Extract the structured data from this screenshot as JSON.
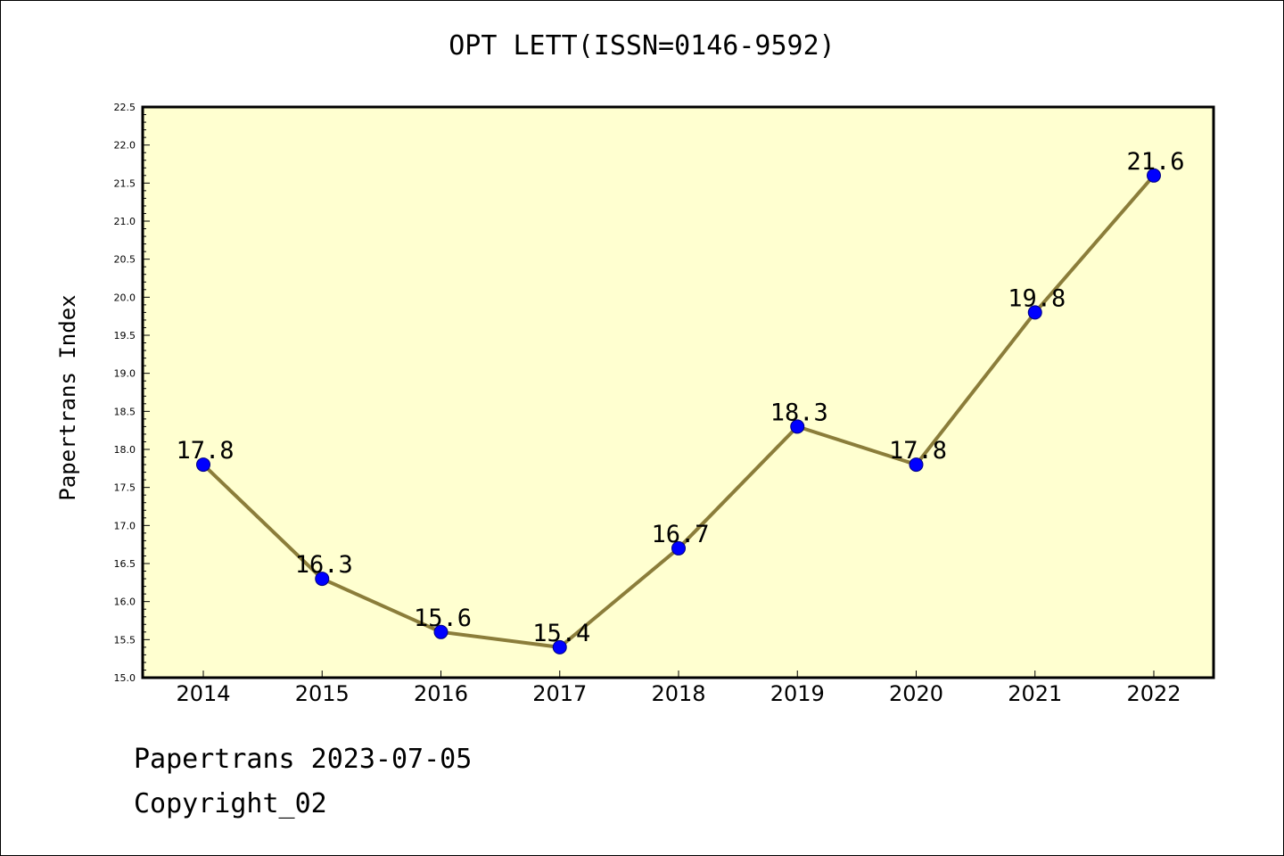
{
  "chart_data": {
    "type": "line",
    "title": "OPT LETT(ISSN=0146-9592)",
    "ylabel": "Papertrans Index",
    "xlabel": "",
    "categories": [
      "2014",
      "2015",
      "2016",
      "2017",
      "2018",
      "2019",
      "2020",
      "2021",
      "2022"
    ],
    "values": [
      17.8,
      16.3,
      15.6,
      15.4,
      16.7,
      18.3,
      17.8,
      19.8,
      21.6
    ],
    "data_labels": [
      "17.8",
      "16.3",
      "15.6",
      "15.4",
      "16.7",
      "18.3",
      "17.8",
      "19.8",
      "21.6"
    ],
    "ylim": [
      15.0,
      22.5
    ],
    "yticks": [
      "15.0",
      "15.5",
      "16.0",
      "16.5",
      "17.0",
      "17.5",
      "18.0",
      "18.5",
      "19.0",
      "19.5",
      "20.0",
      "20.5",
      "21.0",
      "21.5",
      "22.0",
      "22.5"
    ],
    "grid": false,
    "legend": "none",
    "colors": {
      "plot_background": "#ffffd0",
      "line": "#8b7d3a",
      "marker": "#0000ff",
      "marker_edge": "#000080"
    }
  },
  "footer": {
    "date_line": "Papertrans 2023-07-05",
    "copyright": "Copyright_02"
  }
}
